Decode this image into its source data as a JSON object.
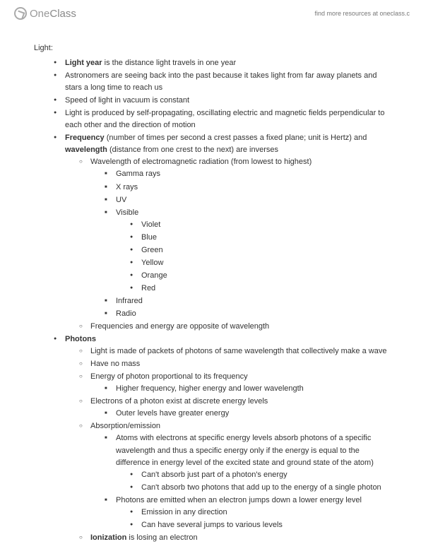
{
  "header": {
    "logo_one": "One",
    "logo_class": "Class",
    "find_more": "find more resources at oneclass.c"
  },
  "doc": {
    "title": "Light:",
    "items": [
      {
        "t": "<b>Light year</b> is the distance light travels in one year"
      },
      {
        "t": "Astronomers are seeing back into the past because it takes light from far away planets and stars a long time to reach us"
      },
      {
        "t": "Speed of light in vacuum is constant"
      },
      {
        "t": "Light is produced by self-propagating, oscillating electric and magnetic fields perpendicular to each other and the direction of motion"
      },
      {
        "t": "<b>Frequency</b> (number of times per second a crest passes a fixed plane; unit is Hertz) and <b>wavelength</b> (distance from one crest to the next) are inverses",
        "c": [
          {
            "t": "Wavelength of electromagnetic radiation (from lowest to highest)",
            "c": [
              {
                "t": "Gamma rays"
              },
              {
                "t": "X rays"
              },
              {
                "t": "UV"
              },
              {
                "t": "Visible",
                "c": [
                  {
                    "t": "Violet"
                  },
                  {
                    "t": "Blue"
                  },
                  {
                    "t": "Green"
                  },
                  {
                    "t": "Yellow"
                  },
                  {
                    "t": "Orange"
                  },
                  {
                    "t": "Red"
                  }
                ]
              },
              {
                "t": "Infrared"
              },
              {
                "t": "Radio"
              }
            ]
          },
          {
            "t": "Frequencies and energy are opposite of wavelength"
          }
        ]
      },
      {
        "t": "<b>Photons</b>",
        "c": [
          {
            "t": "Light is made of packets of photons of same wavelength that collectively make a wave"
          },
          {
            "t": "Have no mass"
          },
          {
            "t": "Energy of photon proportional to its frequency",
            "c": [
              {
                "t": "Higher frequency, higher energy and lower wavelength"
              }
            ]
          },
          {
            "t": "Electrons of a photon exist at discrete energy levels",
            "c": [
              {
                "t": "Outer levels have greater energy"
              }
            ]
          },
          {
            "t": "Absorption/emission",
            "c": [
              {
                "t": "Atoms with electrons at specific energy levels absorb photons of a specific wavelength and thus a specific energy only if the energy is equal to the difference in energy level of the excited state and ground state of the atom)",
                "c": [
                  {
                    "t": "Can't absorb just part of a photon's energy"
                  },
                  {
                    "t": "Can't absorb two photons that add up to the energy of a single photon"
                  }
                ]
              },
              {
                "t": "Photons are emitted when an electron jumps down a lower energy level",
                "c": [
                  {
                    "t": "Emission in any direction"
                  },
                  {
                    "t": "Can have several jumps to various levels"
                  }
                ]
              }
            ]
          },
          {
            "t": "<b>Ionization</b> is losing an electron"
          }
        ]
      }
    ]
  }
}
